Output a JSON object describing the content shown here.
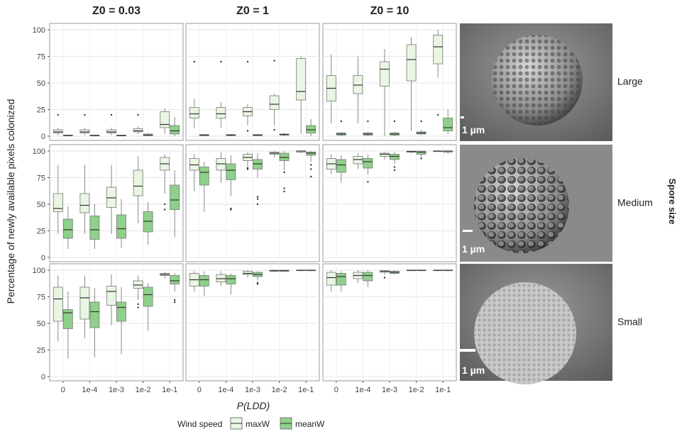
{
  "chart_data": {
    "type": "box",
    "y_label": "Percentage of newly available pixels colonized",
    "x_label": "P(LDD)",
    "columns": [
      "Z0 = 0.03",
      "Z0 = 1",
      "Z0 = 10"
    ],
    "rows": [
      "Large",
      "Medium",
      "Small"
    ],
    "row_strip": "Spore size",
    "scale_label": "1 µm",
    "legend_title": "Wind speed",
    "categories": [
      "0",
      "1e-4",
      "1e-3",
      "1e-2",
      "1e-1"
    ],
    "ylim": [
      -4,
      106
    ],
    "yticks": [
      0,
      25,
      50,
      75,
      100
    ],
    "grid": true,
    "series": [
      {
        "name": "maxW",
        "color": "#e9f6e3"
      },
      {
        "name": "meanW",
        "color": "#8fd08a"
      }
    ],
    "facets": [
      {
        "boxes": [
          [
            {
              "min": 1,
              "q1": 3,
              "median": 4,
              "q3": 6,
              "max": 8,
              "outliers": [
                20
              ]
            },
            {
              "min": 1,
              "q1": 3,
              "median": 4,
              "q3": 6,
              "max": 8,
              "outliers": [
                20
              ]
            },
            {
              "min": 1,
              "q1": 3,
              "median": 4,
              "q3": 6,
              "max": 8,
              "outliers": [
                20
              ]
            },
            {
              "min": 2,
              "q1": 4,
              "median": 5,
              "q3": 7,
              "max": 9,
              "outliers": [
                20
              ]
            },
            {
              "min": 2,
              "q1": 8,
              "median": 11,
              "q3": 23,
              "max": 26
            }
          ],
          [
            {
              "min": 0,
              "q1": 0.3,
              "median": 0.5,
              "q3": 1,
              "max": 1.5
            },
            {
              "min": 0,
              "q1": 0.3,
              "median": 0.5,
              "q3": 1,
              "max": 1.5
            },
            {
              "min": 0,
              "q1": 0.3,
              "median": 0.5,
              "q3": 1,
              "max": 1.5
            },
            {
              "min": 0,
              "q1": 0.5,
              "median": 1,
              "q3": 2,
              "max": 3
            },
            {
              "min": 0,
              "q1": 2,
              "median": 5,
              "q3": 10,
              "max": 18
            }
          ]
        ]
      },
      {
        "boxes": [
          [
            {
              "min": 8,
              "q1": 17,
              "median": 21,
              "q3": 27,
              "max": 35,
              "outliers": [
                70
              ]
            },
            {
              "min": 8,
              "q1": 17,
              "median": 21,
              "q3": 27,
              "max": 32,
              "outliers": [
                70
              ]
            },
            {
              "min": 10,
              "q1": 19,
              "median": 23,
              "q3": 27,
              "max": 30,
              "outliers": [
                70,
                5
              ]
            },
            {
              "min": 10,
              "q1": 25,
              "median": 30,
              "q3": 38,
              "max": 40,
              "outliers": [
                71,
                6
              ]
            },
            {
              "min": 2,
              "q1": 34,
              "median": 42,
              "q3": 73,
              "max": 75
            }
          ],
          [
            {
              "min": 0,
              "q1": 0.5,
              "median": 1,
              "q3": 1.5,
              "max": 2
            },
            {
              "min": 0,
              "q1": 0.5,
              "median": 1,
              "q3": 1.5,
              "max": 2
            },
            {
              "min": 0,
              "q1": 0.5,
              "median": 1,
              "q3": 1.5,
              "max": 2
            },
            {
              "min": 0,
              "q1": 1,
              "median": 1.5,
              "q3": 2,
              "max": 3
            },
            {
              "min": 0,
              "q1": 3,
              "median": 6,
              "q3": 10,
              "max": 16
            }
          ]
        ]
      },
      {
        "boxes": [
          [
            {
              "min": 12,
              "q1": 33,
              "median": 45,
              "q3": 57,
              "max": 77
            },
            {
              "min": 12,
              "q1": 40,
              "median": 48,
              "q3": 57,
              "max": 75
            },
            {
              "min": 0,
              "q1": 47,
              "median": 63,
              "q3": 70,
              "max": 82
            },
            {
              "min": 5,
              "q1": 52,
              "median": 72,
              "q3": 86,
              "max": 93
            },
            {
              "min": 55,
              "q1": 68,
              "median": 84,
              "q3": 95,
              "max": 100,
              "outliers": [
                20
              ]
            }
          ],
          [
            {
              "min": 0,
              "q1": 1,
              "median": 2,
              "q3": 3,
              "max": 4,
              "outliers": [
                14
              ]
            },
            {
              "min": 0,
              "q1": 1,
              "median": 2,
              "q3": 3,
              "max": 4,
              "outliers": [
                14
              ]
            },
            {
              "min": 0,
              "q1": 1,
              "median": 2,
              "q3": 3,
              "max": 4,
              "outliers": [
                14
              ]
            },
            {
              "min": 1,
              "q1": 2,
              "median": 3,
              "q3": 4,
              "max": 6,
              "outliers": [
                14
              ]
            },
            {
              "min": 2,
              "q1": 5,
              "median": 8,
              "q3": 17,
              "max": 25
            }
          ]
        ]
      },
      {
        "boxes": [
          [
            {
              "min": 22,
              "q1": 43,
              "median": 46,
              "q3": 60,
              "max": 87
            },
            {
              "min": 22,
              "q1": 42,
              "median": 49,
              "q3": 60,
              "max": 87
            },
            {
              "min": 22,
              "q1": 47,
              "median": 56,
              "q3": 66,
              "max": 87
            },
            {
              "min": 32,
              "q1": 58,
              "median": 67,
              "q3": 82,
              "max": 95
            },
            {
              "min": 60,
              "q1": 82,
              "median": 88,
              "q3": 94,
              "max": 97,
              "outliers": [
                45,
                50
              ]
            }
          ],
          [
            {
              "min": 8,
              "q1": 18,
              "median": 26,
              "q3": 36,
              "max": 48
            },
            {
              "min": 8,
              "q1": 17,
              "median": 26,
              "q3": 39,
              "max": 50
            },
            {
              "min": 9,
              "q1": 18,
              "median": 27,
              "q3": 40,
              "max": 55
            },
            {
              "min": 12,
              "q1": 24,
              "median": 34,
              "q3": 43,
              "max": 52
            },
            {
              "min": 19,
              "q1": 45,
              "median": 54,
              "q3": 68,
              "max": 82
            }
          ]
        ]
      },
      {
        "boxes": [
          [
            {
              "min": 62,
              "q1": 82,
              "median": 87,
              "q3": 93,
              "max": 97
            },
            {
              "min": 70,
              "q1": 82,
              "median": 88,
              "q3": 93,
              "max": 99
            },
            {
              "min": 85,
              "q1": 91,
              "median": 94,
              "q3": 97,
              "max": 99,
              "outliers": [
                83,
                84
              ]
            },
            {
              "min": 94,
              "q1": 97,
              "median": 98,
              "q3": 99,
              "max": 100
            },
            {
              "min": 98,
              "q1": 99,
              "median": 100,
              "q3": 100,
              "max": 100
            }
          ],
          [
            {
              "min": 43,
              "q1": 68,
              "median": 80,
              "q3": 85,
              "max": 90
            },
            {
              "min": 58,
              "q1": 73,
              "median": 82,
              "q3": 88,
              "max": 96,
              "outliers": [
                45,
                46
              ]
            },
            {
              "min": 75,
              "q1": 83,
              "median": 88,
              "q3": 92,
              "max": 98,
              "outliers": [
                50,
                55,
                57
              ]
            },
            {
              "min": 82,
              "q1": 91,
              "median": 94,
              "q3": 98,
              "max": 100,
              "outliers": [
                62,
                65,
                80
              ]
            },
            {
              "min": 90,
              "q1": 96,
              "median": 98,
              "q3": 99,
              "max": 100,
              "outliers": [
                76,
                83,
                87
              ]
            }
          ]
        ]
      },
      {
        "boxes": [
          [
            {
              "min": 78,
              "q1": 83,
              "median": 88,
              "q3": 93,
              "max": 97
            },
            {
              "min": 83,
              "q1": 88,
              "median": 92,
              "q3": 95,
              "max": 98
            },
            {
              "min": 92,
              "q1": 95,
              "median": 97,
              "q3": 98,
              "max": 99
            },
            {
              "min": 98,
              "q1": 99,
              "median": 99.5,
              "q3": 100,
              "max": 100
            },
            {
              "min": 99,
              "q1": 99.5,
              "median": 100,
              "q3": 100,
              "max": 100
            }
          ],
          [
            {
              "min": 70,
              "q1": 80,
              "median": 87,
              "q3": 92,
              "max": 96
            },
            {
              "min": 78,
              "q1": 84,
              "median": 90,
              "q3": 93,
              "max": 97,
              "outliers": [
                71
              ]
            },
            {
              "min": 88,
              "q1": 92,
              "median": 95,
              "q3": 97,
              "max": 99,
              "outliers": [
                82,
                85
              ]
            },
            {
              "min": 94,
              "q1": 97,
              "median": 99,
              "q3": 100,
              "max": 100,
              "outliers": [
                93
              ]
            },
            {
              "min": 97,
              "q1": 99,
              "median": 100,
              "q3": 100,
              "max": 100
            }
          ]
        ]
      },
      {
        "boxes": [
          [
            {
              "min": 33,
              "q1": 52,
              "median": 73,
              "q3": 84,
              "max": 95
            },
            {
              "min": 36,
              "q1": 54,
              "median": 74,
              "q3": 84,
              "max": 95
            },
            {
              "min": 48,
              "q1": 67,
              "median": 80,
              "q3": 85,
              "max": 96
            },
            {
              "min": 72,
              "q1": 83,
              "median": 86,
              "q3": 90,
              "max": 95,
              "outliers": [
                65,
                68
              ]
            },
            {
              "min": 92,
              "q1": 95,
              "median": 96,
              "q3": 97,
              "max": 98
            }
          ],
          [
            {
              "min": 17,
              "q1": 45,
              "median": 60,
              "q3": 63,
              "max": 80
            },
            {
              "min": 18,
              "q1": 46,
              "median": 61,
              "q3": 70,
              "max": 83
            },
            {
              "min": 21,
              "q1": 52,
              "median": 65,
              "q3": 70,
              "max": 84
            },
            {
              "min": 43,
              "q1": 66,
              "median": 77,
              "q3": 84,
              "max": 88
            },
            {
              "min": 80,
              "q1": 87,
              "median": 90,
              "q3": 95,
              "max": 97,
              "outliers": [
                70,
                72
              ]
            }
          ]
        ]
      },
      {
        "boxes": [
          [
            {
              "min": 80,
              "q1": 85,
              "median": 91,
              "q3": 97,
              "max": 99
            },
            {
              "min": 85,
              "q1": 89,
              "median": 92,
              "q3": 96,
              "max": 99
            },
            {
              "min": 93,
              "q1": 96,
              "median": 97,
              "q3": 99,
              "max": 100
            },
            {
              "min": 98,
              "q1": 99,
              "median": 99.5,
              "q3": 100,
              "max": 100
            },
            {
              "min": 99,
              "q1": 99.5,
              "median": 100,
              "q3": 100,
              "max": 100
            }
          ],
          [
            {
              "min": 76,
              "q1": 85,
              "median": 91,
              "q3": 95,
              "max": 99
            },
            {
              "min": 77,
              "q1": 87,
              "median": 92,
              "q3": 95,
              "max": 97
            },
            {
              "min": 90,
              "q1": 94,
              "median": 96,
              "q3": 98,
              "max": 99,
              "outliers": [
                87,
                88
              ]
            },
            {
              "min": 98,
              "q1": 99,
              "median": 99.5,
              "q3": 100,
              "max": 100
            },
            {
              "min": 99,
              "q1": 99.5,
              "median": 100,
              "q3": 100,
              "max": 100
            }
          ]
        ]
      },
      {
        "boxes": [
          [
            {
              "min": 80,
              "q1": 86,
              "median": 93,
              "q3": 98,
              "max": 100
            },
            {
              "min": 88,
              "q1": 92,
              "median": 95,
              "q3": 98,
              "max": 100
            },
            {
              "min": 96,
              "q1": 98,
              "median": 99,
              "q3": 99.5,
              "max": 100,
              "outliers": [
                93
              ]
            },
            {
              "min": 99,
              "q1": 99.5,
              "median": 100,
              "q3": 100,
              "max": 100
            },
            {
              "min": 99,
              "q1": 99.5,
              "median": 100,
              "q3": 100,
              "max": 100
            }
          ],
          [
            {
              "min": 80,
              "q1": 86,
              "median": 94,
              "q3": 97,
              "max": 99
            },
            {
              "min": 84,
              "q1": 90,
              "median": 95,
              "q3": 98,
              "max": 100
            },
            {
              "min": 96,
              "q1": 97,
              "median": 98,
              "q3": 99,
              "max": 100
            },
            {
              "min": 99,
              "q1": 99.5,
              "median": 100,
              "q3": 100,
              "max": 100
            },
            {
              "min": 99,
              "q1": 99.5,
              "median": 100,
              "q3": 100,
              "max": 100
            }
          ]
        ]
      }
    ]
  }
}
